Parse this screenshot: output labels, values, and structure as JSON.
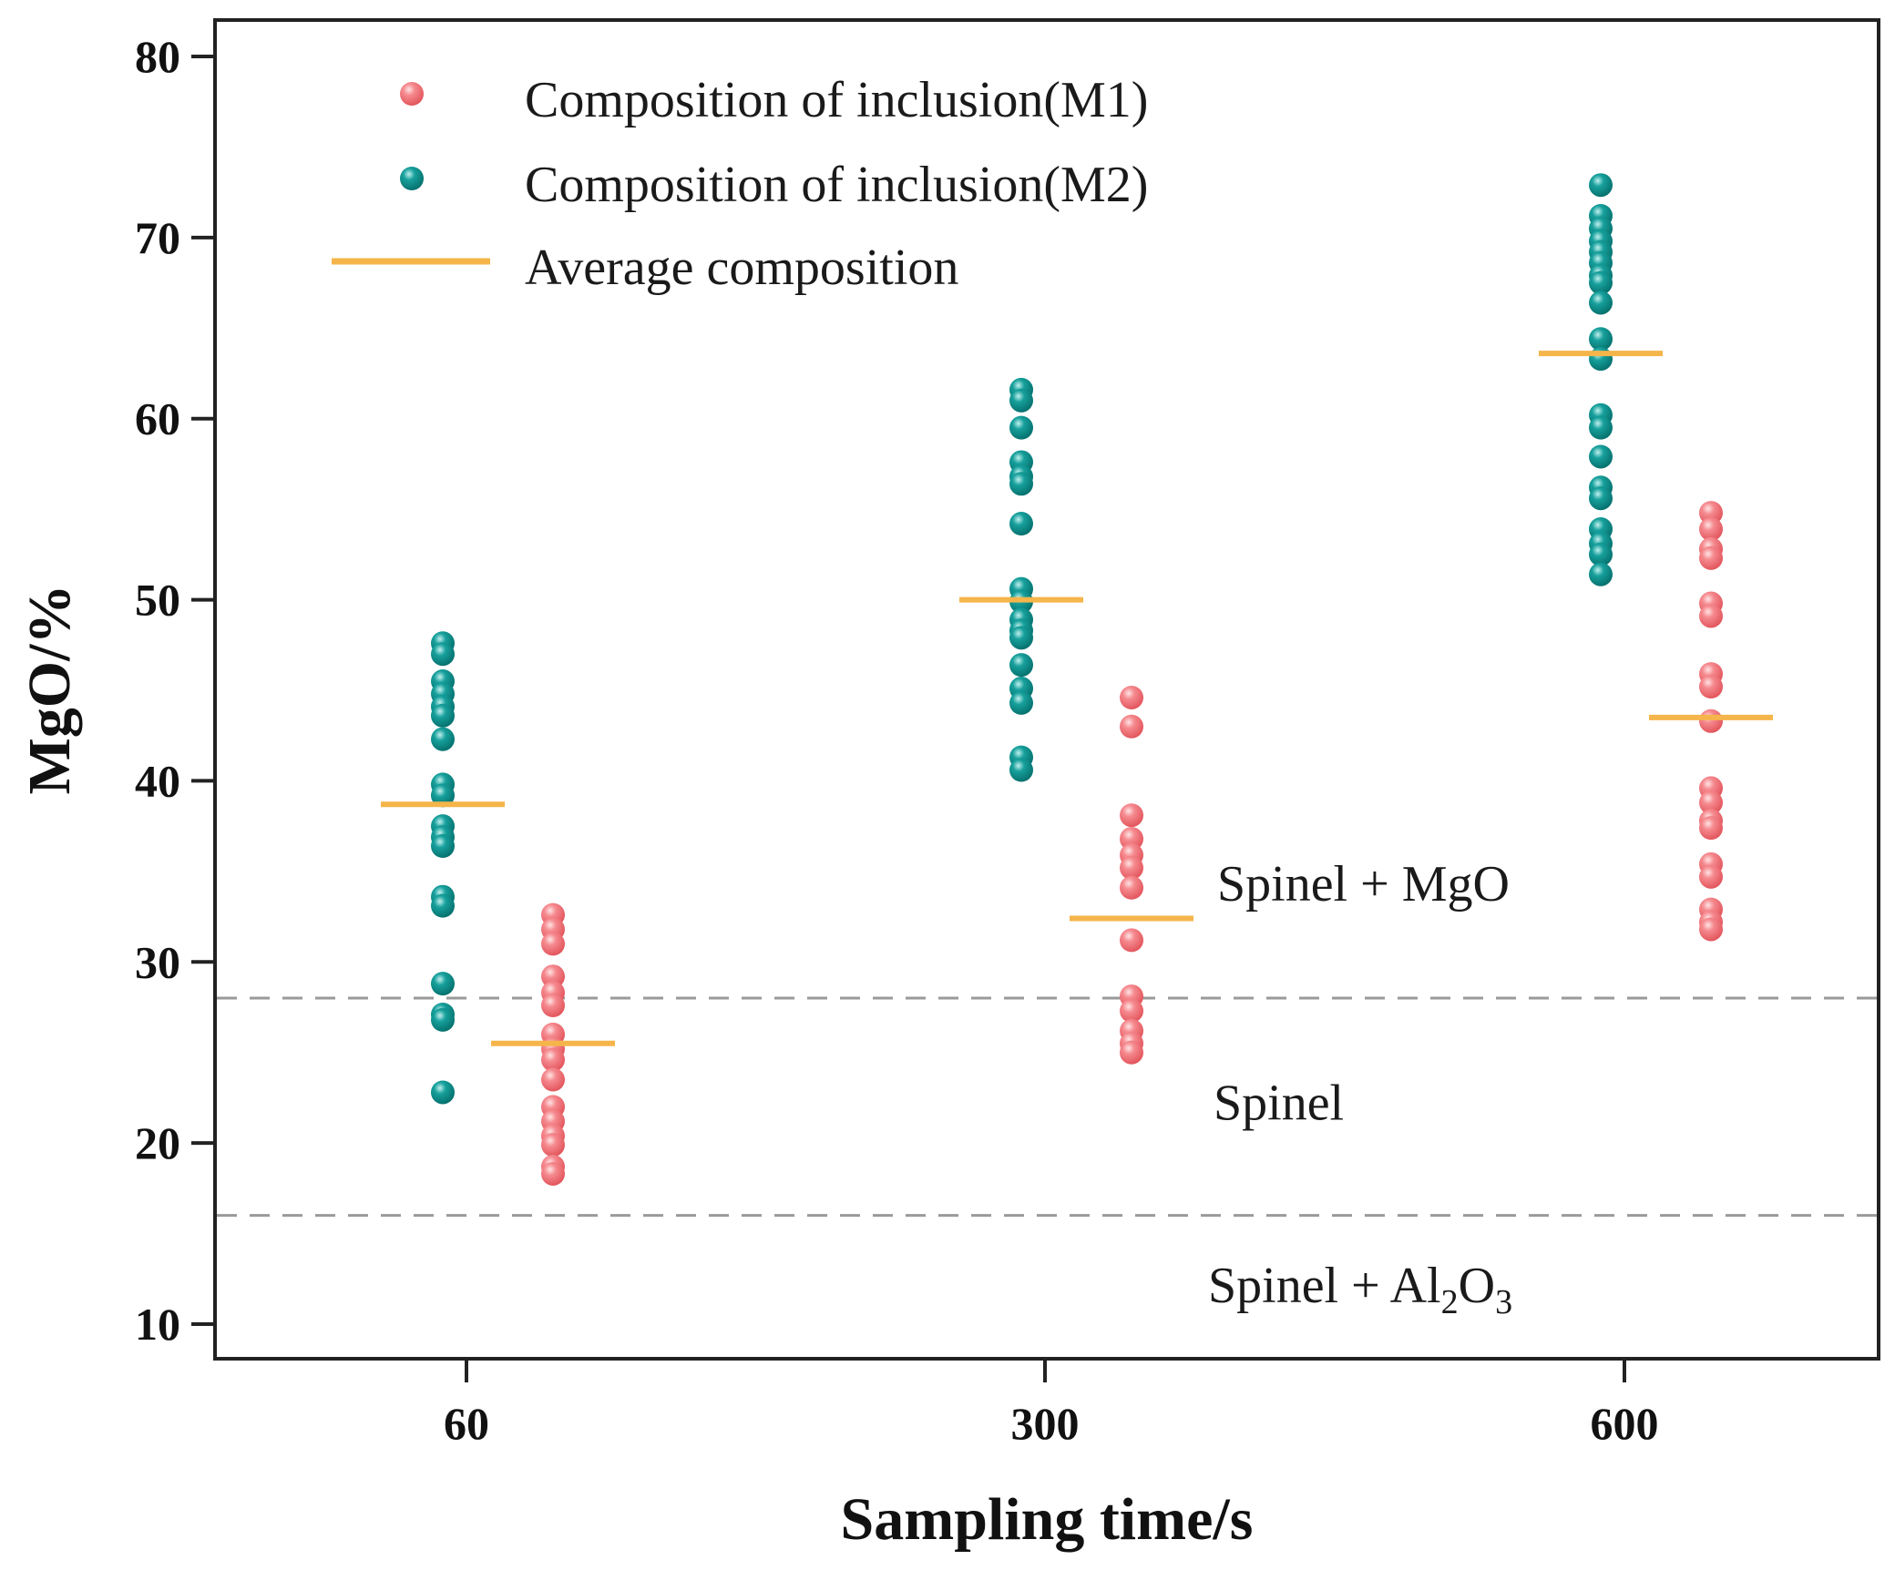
{
  "chart_data": {
    "type": "scatter",
    "title": "",
    "xlabel": "Sampling time/s",
    "ylabel": "MgO/%",
    "ylim": [
      10,
      80
    ],
    "yticks": [
      "10",
      "20",
      "30",
      "40",
      "50",
      "60",
      "70",
      "80"
    ],
    "categories": [
      "60",
      "300",
      "600"
    ],
    "grid": false,
    "legend_position": "top-left",
    "colors": {
      "m1": "#f06a70",
      "m2": "#0a8a87",
      "average": "#f5b54a",
      "boundary": "#9a9a9a"
    },
    "series": [
      {
        "name": "Composition of inclusion(M1)",
        "marker": "circle",
        "groups": [
          {
            "category": "60",
            "values": [
              32.6,
              31.8,
              31.0,
              29.2,
              28.3,
              27.6,
              26.0,
              25.2,
              24.6,
              23.5,
              22.0,
              21.2,
              20.4,
              19.9,
              18.7,
              18.3
            ]
          },
          {
            "category": "300",
            "values": [
              44.6,
              43.0,
              38.1,
              36.8,
              35.9,
              35.2,
              34.1,
              31.2,
              28.1,
              27.3,
              26.2,
              25.5,
              25.0
            ]
          },
          {
            "category": "600",
            "values": [
              54.8,
              53.9,
              52.8,
              52.3,
              49.8,
              49.1,
              45.9,
              45.2,
              43.3,
              39.6,
              38.8,
              37.8,
              37.4,
              35.4,
              34.7,
              32.9,
              32.2,
              31.8
            ]
          }
        ]
      },
      {
        "name": "Composition of inclusion(M2)",
        "marker": "circle",
        "groups": [
          {
            "category": "60",
            "values": [
              47.6,
              47.0,
              45.5,
              44.8,
              44.1,
              43.6,
              42.3,
              39.8,
              39.2,
              37.5,
              36.9,
              36.4,
              33.6,
              33.1,
              28.8,
              27.1,
              26.8,
              22.8
            ]
          },
          {
            "category": "300",
            "values": [
              61.6,
              61.0,
              59.5,
              57.6,
              56.8,
              56.4,
              54.2,
              50.6,
              49.9,
              48.9,
              48.3,
              47.9,
              46.4,
              45.1,
              44.3,
              41.3,
              40.6
            ]
          },
          {
            "category": "600",
            "values": [
              72.9,
              71.2,
              70.5,
              69.8,
              69.2,
              68.6,
              67.9,
              67.5,
              66.4,
              64.4,
              63.3,
              60.2,
              59.5,
              57.9,
              56.2,
              55.6,
              53.9,
              53.1,
              52.5,
              51.4
            ]
          }
        ]
      },
      {
        "name": "Average composition",
        "marker": "line",
        "groups": [
          {
            "series": "M2",
            "category": "60",
            "value": 38.7
          },
          {
            "series": "M1",
            "category": "60",
            "value": 25.5
          },
          {
            "series": "M2",
            "category": "300",
            "value": 50.0
          },
          {
            "series": "M1",
            "category": "300",
            "value": 32.4
          },
          {
            "series": "M2",
            "category": "600",
            "value": 63.6
          },
          {
            "series": "M1",
            "category": "600",
            "value": 43.5
          }
        ]
      }
    ],
    "reference_lines": [
      {
        "y": 28,
        "style": "dashed"
      },
      {
        "y": 16,
        "style": "dashed"
      }
    ],
    "annotations": [
      {
        "id": "spinel-mgo",
        "text": "Spinel + MgO",
        "y": 34.3
      },
      {
        "id": "spinel",
        "text": "Spinel",
        "y": 22.2
      },
      {
        "id": "spinel-al2o3",
        "text": "Spinel + Al",
        "sub1": "2",
        "mid": "O",
        "sub2": "3",
        "y": 12.1
      }
    ]
  }
}
